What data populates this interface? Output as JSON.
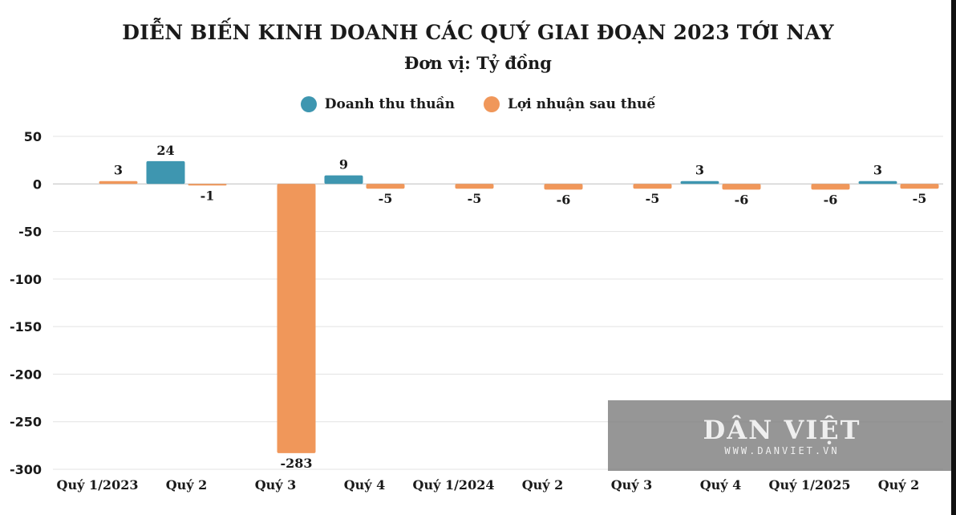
{
  "chart_data": {
    "type": "bar",
    "title": "DIỄN BIẾN KINH DOANH CÁC QUÝ GIAI ĐOẠN 2023 TỚI NAY",
    "subtitle": "Đơn vị: Tỷ đồng",
    "categories": [
      "Quý 1/2023",
      "Quý 2",
      "Quý 3",
      "Quý 4",
      "Quý 1/2024",
      "Quý 2",
      "Quý 3",
      "Quý 4",
      "Quý 1/2025",
      "Quý 2"
    ],
    "series": [
      {
        "name": "Doanh thu thuần",
        "color": "#3e96b0",
        "values": [
          null,
          24,
          null,
          9,
          null,
          null,
          null,
          3,
          null,
          3
        ]
      },
      {
        "name": "Lợi nhuận sau thuế",
        "color": "#f0975a",
        "values": [
          3,
          -1,
          -283,
          -5,
          -5,
          -6,
          -5,
          -6,
          -6,
          -5
        ]
      }
    ],
    "ylim": [
      -300,
      50
    ],
    "yticks": [
      50,
      0,
      -50,
      -100,
      -150,
      -200,
      -250,
      -300
    ],
    "grid": true,
    "legend_position": "top-center",
    "xlabel": "",
    "ylabel": ""
  },
  "watermark": {
    "logo": "DÂN VIỆT",
    "url": "WWW.DANVIET.VN"
  }
}
